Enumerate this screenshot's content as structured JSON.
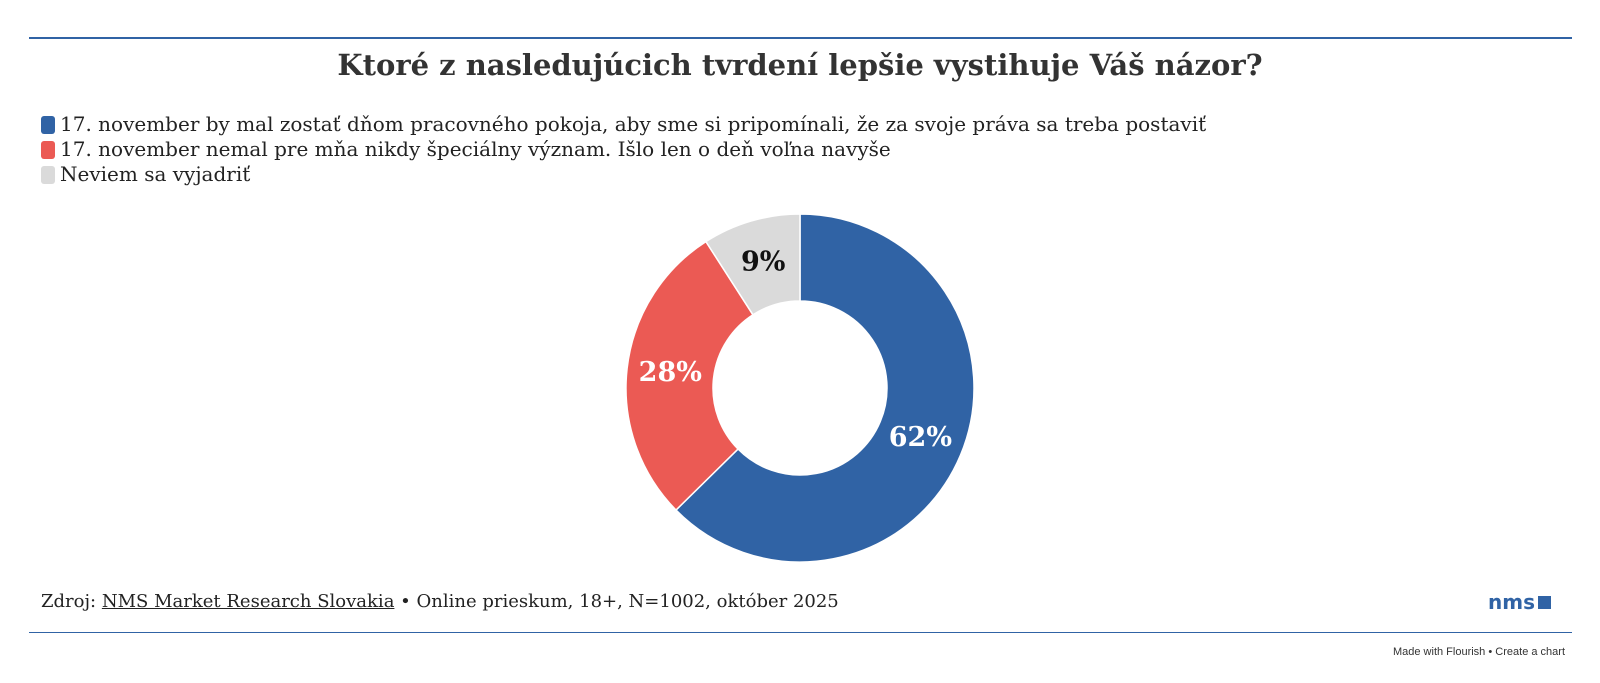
{
  "chart_data": {
    "type": "donut",
    "title": "Ktoré z nasledujúcich tvrdení lepšie vystihuje Váš názor?",
    "categories": [
      "17. november by mal zostať dňom pracovného pokoja, aby sme si pripomínali, že za svoje práva sa treba postaviť",
      "17. november nemal pre mňa nikdy špeciálny význam. Išlo len o deň voľna navyše",
      "Neviem sa vyjadriť"
    ],
    "values": [
      62,
      28,
      9
    ],
    "value_labels": [
      "62%",
      "28%",
      "9%"
    ],
    "colors": [
      "#3063a5",
      "#eb5a54",
      "#dadada"
    ],
    "label_colors": [
      "#ffffff",
      "#ffffff",
      "#111111"
    ],
    "legend": "top-left"
  },
  "footer": {
    "prefix": "Zdroj:",
    "source_link": "NMS Market Research Slovakia",
    "note": "• Online prieskum, 18+, N=1002, október 2025",
    "logo": "nms"
  },
  "credit": {
    "made_with": "Made with Flourish",
    "separator": "•",
    "create": "Create a chart"
  }
}
